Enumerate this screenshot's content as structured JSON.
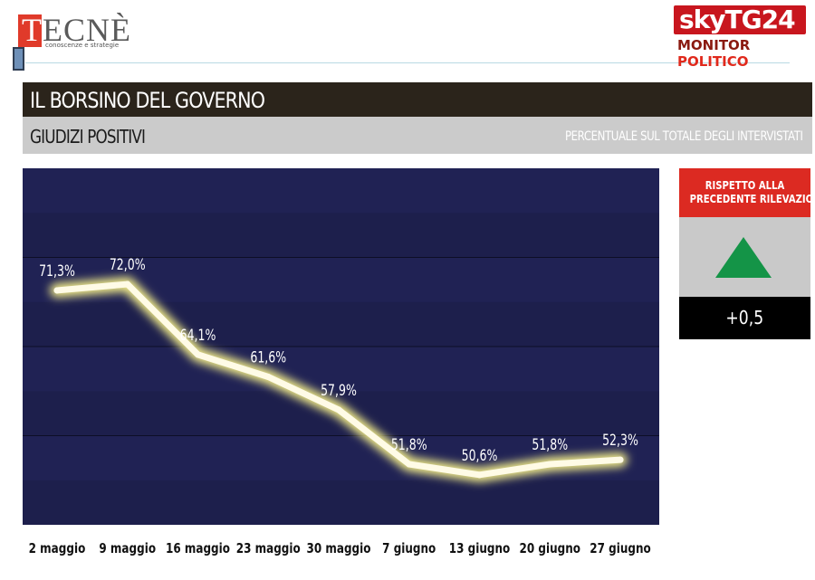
{
  "header": {
    "tecne_logo": "TECNÈ",
    "tecne_logo_first": "T",
    "tecne_logo_rest": "ECNÈ",
    "tecne_tagline": "conoscenze e strategie",
    "sky_logo_sky": "sky",
    "sky_logo_tg": "TG24",
    "sky_monitor": "MONITOR",
    "sky_politico": "POLITICO"
  },
  "title": "IL BORSINO DEL GOVERNO",
  "subtitle": "GIUDIZI POSITIVI",
  "subtitle_note": "PERCENTUALE SUL TOTALE DEGLI INTERVISTATI",
  "comparison": {
    "label_line1": "RISPETTO ALLA",
    "label_line2": "PRECEDENTE RILEVAZIONE",
    "direction": "up",
    "arrow_color": "#149447",
    "delta": "+0,5"
  },
  "colors": {
    "plot_bg": "#202254",
    "line": "#fffbe6",
    "glow": "#f4ee8a",
    "title_bar": "#2b241b",
    "subtitle_bar": "#cbcbcb",
    "accent_red": "#dc2a22"
  },
  "chart_data": {
    "type": "line",
    "title": "IL BORSINO DEL GOVERNO",
    "subtitle": "GIUDIZI POSITIVI",
    "xlabel": "",
    "ylabel": "",
    "categories": [
      "2 maggio",
      "9 maggio",
      "16 maggio",
      "23 maggio",
      "30 maggio",
      "7 giugno",
      "13 giugno",
      "20 giugno",
      "27 giugno"
    ],
    "series": [
      {
        "values": [
          71.3,
          72.0,
          64.1,
          61.6,
          57.9,
          51.8,
          50.6,
          51.8,
          52.3
        ],
        "labels": [
          "71,3%",
          "72,0%",
          "64,1%",
          "61,6%",
          "57,9%",
          "51,8%",
          "50,6%",
          "51,8%",
          "52,3%"
        ]
      }
    ],
    "ylim": [
      45,
      85
    ],
    "grid": true,
    "legend": "none"
  }
}
